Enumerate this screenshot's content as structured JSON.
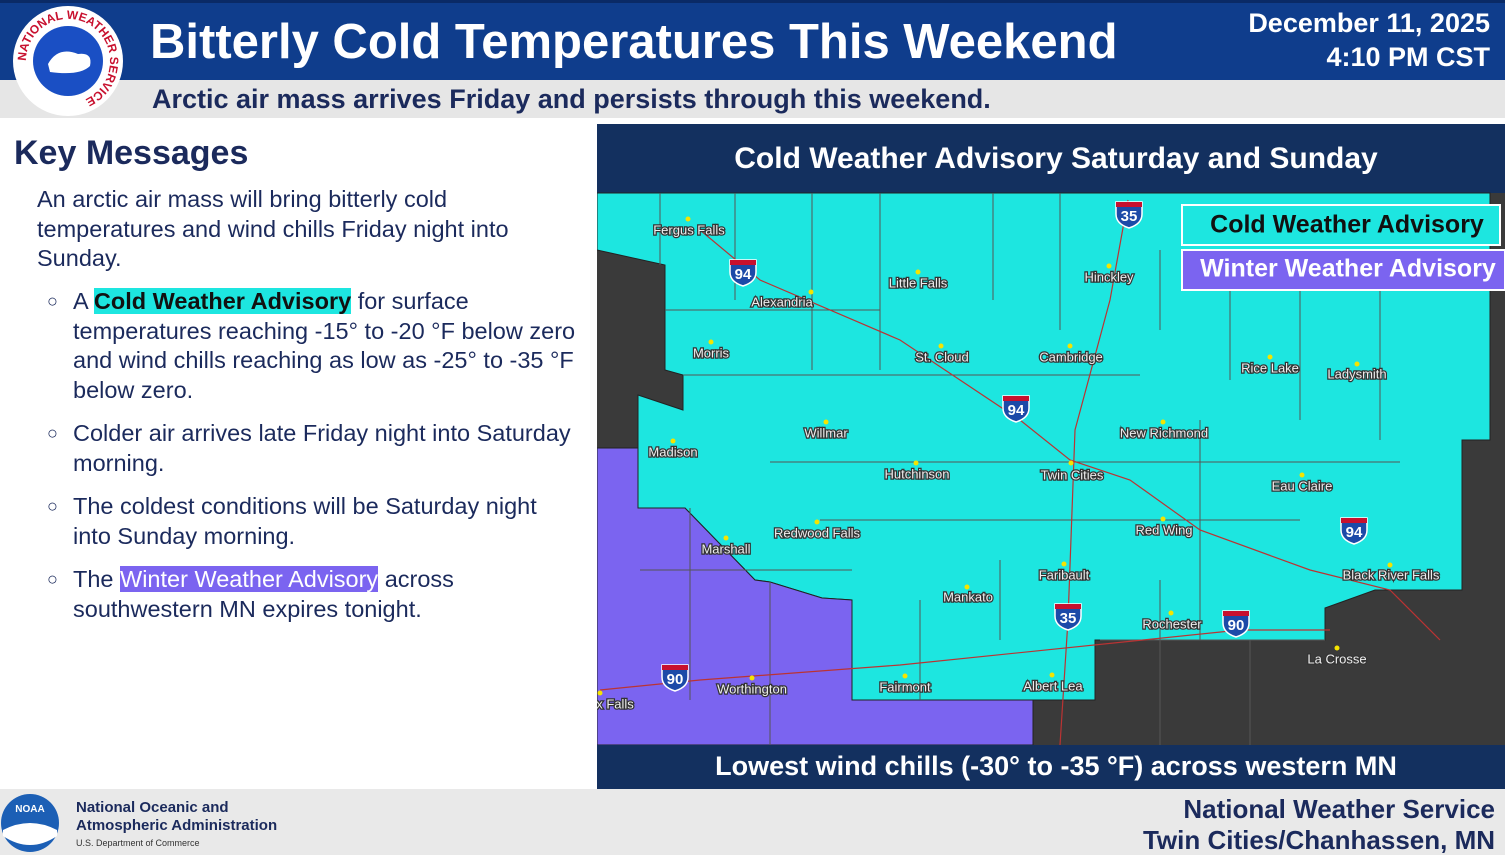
{
  "header": {
    "title": "Bitterly Cold Temperatures This Weekend",
    "subtitle": "Arctic air mass arrives Friday and persists through this weekend.",
    "date": "December 11, 2025",
    "time": "4:10 PM CST",
    "logo_text": "NATIONAL WEATHER SERVICE"
  },
  "key_messages": {
    "title": "Key Messages",
    "intro": "An arctic air mass will bring bitterly cold temperatures and wind chills Friday night into Sunday.",
    "bullets": [
      {
        "before": "A",
        "highlight": "Cold Weather Advisory",
        "after": "for surface temperatures reaching -15° to -20 °F below zero and wind chills reaching as low as -25° to -35 °F below zero."
      },
      {
        "text": "Colder air arrives late Friday night into Saturday morning."
      },
      {
        "text": "The coldest conditions will be Saturday night into Sunday morning."
      },
      {
        "before": "The",
        "highlight": "Winter Weather Advisory",
        "after": "across southwestern MN expires tonight."
      }
    ]
  },
  "map": {
    "title": "Cold Weather Advisory Saturday and Sunday",
    "legend": [
      "Cold Weather Advisory",
      "Winter Weather Advisory"
    ],
    "cities": [
      "Fergus Falls",
      "Alexandria",
      "Little Falls",
      "Hinckley",
      "Morris",
      "St. Cloud",
      "Cambridge",
      "Rice Lake",
      "Ladysmith",
      "Willmar",
      "Madison",
      "New Richmond",
      "Hutchinson",
      "Twin Cities",
      "Eau Claire",
      "Redwood Falls",
      "Marshall",
      "Red Wing",
      "Faribault",
      "Black River Falls",
      "Mankato",
      "Rochester",
      "La Crosse",
      "Worthington",
      "Fairmont",
      "Albert Lea",
      "x Falls"
    ],
    "shields": [
      "94",
      "35",
      "94",
      "35",
      "90",
      "90",
      "94"
    ],
    "caption": "Lowest wind chills (-30° to -35 °F) across western MN"
  },
  "footer": {
    "noaa_logo": "NOAA",
    "noaa_line1": "National Oceanic and",
    "noaa_line2": "Atmospheric Administration",
    "noaa_line3": "U.S. Department of Commerce",
    "office_line1": "National Weather Service",
    "office_line2": "Twin Cities/Chanhassen, MN"
  }
}
